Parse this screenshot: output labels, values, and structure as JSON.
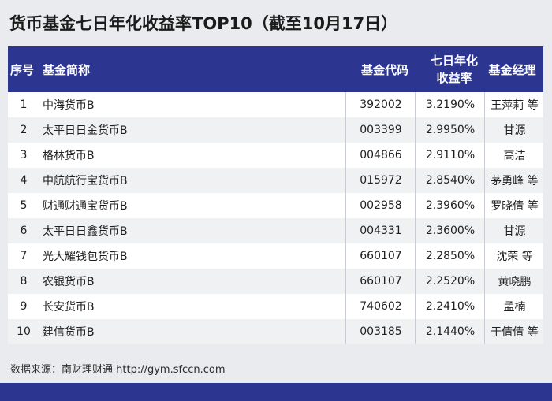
{
  "title": "货币基金七日年化收益率TOP10（截至10月17日）",
  "table": {
    "headers": {
      "no": "序号",
      "name": "基金简称",
      "code": "基金代码",
      "yield_line1": "七日年化",
      "yield_line2": "收益率",
      "manager": "基金经理"
    },
    "rows": [
      {
        "no": "1",
        "name": "中海货币B",
        "code": "392002",
        "yield": "3.2190%",
        "manager": "王萍莉 等"
      },
      {
        "no": "2",
        "name": "太平日日金货币B",
        "code": "003399",
        "yield": "2.9950%",
        "manager": "甘源"
      },
      {
        "no": "3",
        "name": "格林货币B",
        "code": "004866",
        "yield": "2.9110%",
        "manager": "高洁"
      },
      {
        "no": "4",
        "name": "中航航行宝货币B",
        "code": "015972",
        "yield": "2.8540%",
        "manager": "茅勇峰 等"
      },
      {
        "no": "5",
        "name": "财通财通宝货币B",
        "code": "002958",
        "yield": "2.3960%",
        "manager": "罗晓倩 等"
      },
      {
        "no": "6",
        "name": "太平日日鑫货币B",
        "code": "004331",
        "yield": "2.3600%",
        "manager": "甘源"
      },
      {
        "no": "7",
        "name": "光大耀钱包货币B",
        "code": "660107",
        "yield": "2.2850%",
        "manager": "沈荣 等"
      },
      {
        "no": "8",
        "name": "农银货币B",
        "code": "660107",
        "yield": "2.2520%",
        "manager": "黄晓鹏"
      },
      {
        "no": "9",
        "name": "长安货币B",
        "code": "740602",
        "yield": "2.2410%",
        "manager": "孟楠"
      },
      {
        "no": "10",
        "name": "建信货币B",
        "code": "003185",
        "yield": "2.1440%",
        "manager": "于倩倩 等"
      }
    ]
  },
  "source": "数据来源：南财理财通 http://gym.sfccn.com",
  "colors": {
    "accent": "#2c3590",
    "background": "#e9ebee"
  }
}
